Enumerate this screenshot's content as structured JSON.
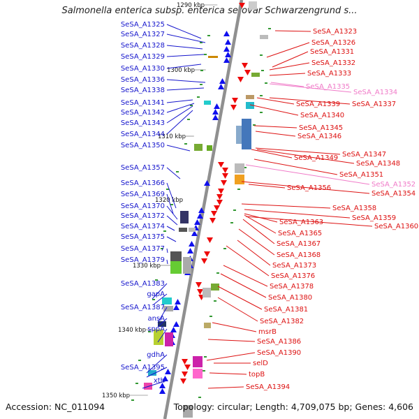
{
  "title": "Salmonella enterica subsp. enterica serovar Schwarzengrund s...",
  "accession_text": "Accession: NC_011094",
  "topology_text": "Topology: circular; Length: 4,709,075 bp; Genes: 4,606",
  "colors": {
    "left_label": "#1515cc",
    "right_label": "#dd1111",
    "right_label_light": "#f07ac8",
    "backbone": "#909090"
  },
  "kbp_labels": [
    "1290 kbp",
    "1300 kbp",
    "1310 kbp",
    "1320 kbp",
    "1330 kbp",
    "1340 kbp",
    "1350 kbp"
  ],
  "left_labels": [
    "SeSA_A1325",
    "SeSA_A1327",
    "SeSA_A1328",
    "SeSA_A1329",
    "SeSA_A1330",
    "SeSA_A1336",
    "SeSA_A1338",
    "SeSA_A1341",
    "SeSA_A1342",
    "SeSA_A1343",
    "SeSA_A1344",
    "SeSA_A1350",
    "SeSA_A1357",
    "SeSA_A1366",
    "SeSA_A1369",
    "SeSA_A1370",
    "SeSA_A1372",
    "SeSA_A1374",
    "SeSA_A1375",
    "SeSA_A1377",
    "SeSA_A1379",
    "SeSA_A1383",
    "gapA",
    "SeSA_A1387",
    "ansA",
    "sppA",
    "gdhA",
    "SeSA_A1395",
    "xth"
  ],
  "right_labels": [
    "SeSA_A1323",
    "SeSA_A1326",
    "SeSA_A1331",
    "SeSA_A1332",
    "SeSA_A1333",
    "SeSA_A1335",
    "SeSA_A1334",
    "SeSA_A1339",
    "SeSA_A1337",
    "SeSA_A1340",
    "SeSA_A1345",
    "SeSA_A1346",
    "SeSA_A1347",
    "SeSA_A1349",
    "SeSA_A1348",
    "SeSA_A1351",
    "SeSA_A1352",
    "SeSA_A1356",
    "SeSA_A1354",
    "SeSA_A1358",
    "SeSA_A1359",
    "SeSA_A1363",
    "SeSA_A1360",
    "SeSA_A1365",
    "SeSA_A1367",
    "SeSA_A1368",
    "SeSA_A1373",
    "SeSA_A1376",
    "SeSA_A1378",
    "SeSA_A1380",
    "SeSA_A1381",
    "SeSA_A1382",
    "msrB",
    "SeSA_A1386",
    "SeSA_A1390",
    "selD",
    "topB",
    "SeSA_A1394"
  ]
}
